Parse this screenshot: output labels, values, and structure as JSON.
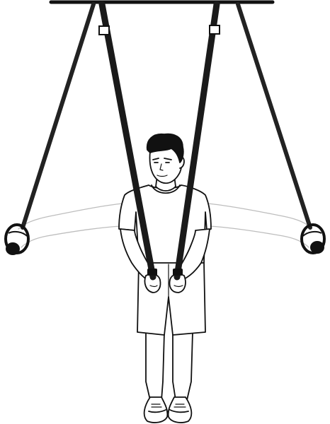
{
  "illustration": {
    "subject": "suspension-trainer-exercise",
    "colors": {
      "background": "#ffffff",
      "ink": "#111111",
      "strap": "#1a1a1a",
      "ghost_ink": "#bdbdbd",
      "skin": "#ffffff"
    },
    "parts": [
      "overhead-bar",
      "left-outer-strap",
      "right-outer-strap",
      "left-inner-strap",
      "right-inner-strap",
      "ghost-arms",
      "person"
    ]
  }
}
